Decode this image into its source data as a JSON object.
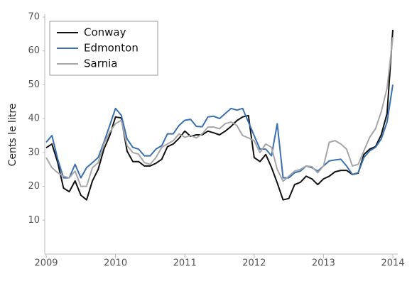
{
  "chart_data": {
    "type": "line",
    "y_label": "Cents le litre",
    "categories": [
      "2009",
      null,
      null,
      null,
      null,
      null,
      null,
      null,
      null,
      null,
      null,
      null,
      "2010",
      null,
      null,
      null,
      null,
      null,
      null,
      null,
      null,
      null,
      null,
      null,
      "2011",
      null,
      null,
      null,
      null,
      null,
      null,
      null,
      null,
      null,
      null,
      null,
      "2012",
      null,
      null,
      null,
      null,
      null,
      null,
      null,
      null,
      null,
      null,
      null,
      "2013",
      null,
      null,
      null,
      null,
      null,
      null,
      null,
      null,
      null,
      null,
      null,
      "2014"
    ],
    "series": [
      {
        "name": "Conway",
        "color": "#111111",
        "values": [
          31.4,
          32.5,
          27,
          19.5,
          18.4,
          21.6,
          17.4,
          16,
          21.6,
          25,
          31,
          35,
          40.5,
          40.2,
          30.4,
          27.3,
          27.3,
          26,
          26,
          26.8,
          28,
          31.7,
          32.5,
          34.2,
          36.3,
          34.8,
          35.2,
          35.2,
          36.3,
          35.8,
          35.2,
          36.3,
          37.7,
          39.4,
          40.5,
          40.9,
          28.5,
          27.3,
          29.4,
          25.6,
          21,
          16,
          16.4,
          20.5,
          21.2,
          23,
          22.2,
          20.5,
          22.2,
          23,
          24.3,
          24.7,
          24.7,
          23.5,
          23.9,
          29.4,
          31,
          31.7,
          35.2,
          41.5,
          66.2
        ]
      },
      {
        "name": "Edmonton",
        "color": "#3a70b0",
        "values": [
          33,
          35,
          28,
          22.5,
          22.5,
          26.5,
          22.5,
          25.5,
          27,
          28.5,
          33,
          38,
          43,
          41,
          34,
          31.5,
          31,
          29,
          29,
          31,
          32,
          35.5,
          35.5,
          38,
          39.5,
          39.8,
          37.7,
          37.6,
          40.5,
          40.7,
          40,
          41.5,
          43,
          42.5,
          43,
          39,
          35,
          31,
          31,
          29,
          38.5,
          22.5,
          22.5,
          24,
          24.5,
          26,
          25.5,
          24.5,
          26,
          27.5,
          27.8,
          28,
          26,
          23.5,
          24,
          28.5,
          30.5,
          31.5,
          34,
          39,
          50
        ]
      },
      {
        "name": "Sarnia",
        "color": "#a6a6a6",
        "values": [
          28.5,
          25.5,
          24,
          23,
          22.5,
          24.5,
          20,
          20,
          25.5,
          27,
          32.5,
          36,
          38.5,
          39.5,
          32,
          30,
          29.5,
          27,
          26.5,
          28.5,
          31.5,
          32.5,
          33.5,
          35.5,
          34.5,
          35,
          34.3,
          35.5,
          37.5,
          37.5,
          37,
          38.5,
          39,
          38,
          35,
          34.3,
          33.5,
          30,
          32.5,
          31.5,
          25,
          21.5,
          23,
          24.5,
          25,
          26,
          25.8,
          24,
          26,
          33,
          33.5,
          32.5,
          31,
          26,
          26.5,
          30.5,
          34.5,
          37,
          42,
          49,
          64
        ]
      }
    ],
    "ylim": [
      0,
      70
    ],
    "yticks": [
      10,
      20,
      30,
      40,
      50,
      60,
      70
    ],
    "legend": "top-left"
  }
}
